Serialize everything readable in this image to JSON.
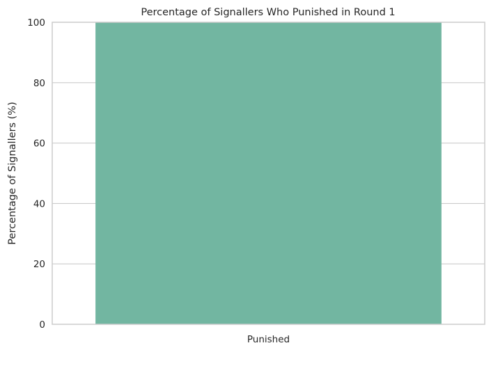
{
  "chart_data": {
    "type": "bar",
    "title": "Percentage of Signallers Who Punished in Round 1",
    "xlabel": "",
    "ylabel": "Percentage of Signallers (%)",
    "categories": [
      "Punished"
    ],
    "values": [
      100
    ],
    "ylim": [
      0,
      100
    ],
    "yticks": [
      0,
      20,
      40,
      60,
      80,
      100
    ],
    "grid": true,
    "bar_color": "#72b6a1",
    "grid_color": "#cccccc",
    "spine_color": "#cccccc"
  }
}
